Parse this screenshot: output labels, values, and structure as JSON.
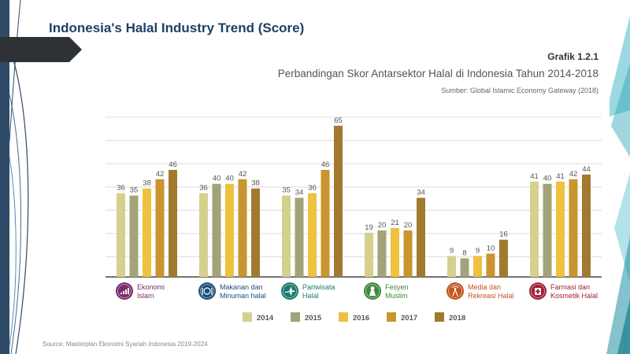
{
  "slide": {
    "title": "Indonesia's Halal Industry Trend (Score)",
    "footer": "Source: Masterplan Ekonomi Syariah Indonesia 2019-2024"
  },
  "chart_data": {
    "type": "bar",
    "figure_label": "Grafik 1.2.1",
    "title": "Perbandingan Skor Antarsektor Halal di Indonesia Tahun 2014-2018",
    "subtitle": "Sumber: Global Islamic Economy Gateway (2018)",
    "xlabel": "",
    "ylabel": "",
    "ylim": [
      0,
      70
    ],
    "grid": true,
    "legend_position": "bottom",
    "categories": [
      {
        "line1": "Ekonomi",
        "line2": "Islam",
        "color": "#7a2e6b",
        "icon": "chart-bars-icon"
      },
      {
        "line1": "Makanan dan",
        "line2": "Minuman halal",
        "color": "#1f4f7a",
        "icon": "cutlery-icon"
      },
      {
        "line1": "Pariwisata",
        "line2": "Halal",
        "color": "#1d7a6e",
        "icon": "airplane-icon"
      },
      {
        "line1": "Fesyen",
        "line2": "Muslim",
        "color": "#3d8a3a",
        "icon": "hijab-icon"
      },
      {
        "line1": "Media dan",
        "line2": "Rekreasi Halal",
        "color": "#c2541e",
        "icon": "broadcast-icon"
      },
      {
        "line1": "Farmasi dan",
        "line2": "Kosmetik Halal",
        "color": "#a3203a",
        "icon": "pharmacy-icon"
      }
    ],
    "series": [
      {
        "name": "2014",
        "color": "#d6d08f",
        "values": [
          36,
          36,
          35,
          19,
          9,
          41
        ]
      },
      {
        "name": "2015",
        "color": "#a3a37a",
        "values": [
          35,
          40,
          34,
          20,
          8,
          40
        ]
      },
      {
        "name": "2016",
        "color": "#eec13f",
        "values": [
          38,
          40,
          36,
          21,
          9,
          41
        ]
      },
      {
        "name": "2017",
        "color": "#c9952e",
        "values": [
          42,
          42,
          46,
          20,
          10,
          42
        ]
      },
      {
        "name": "2018",
        "color": "#a17a30",
        "values": [
          46,
          38,
          65,
          34,
          16,
          44
        ]
      }
    ]
  }
}
